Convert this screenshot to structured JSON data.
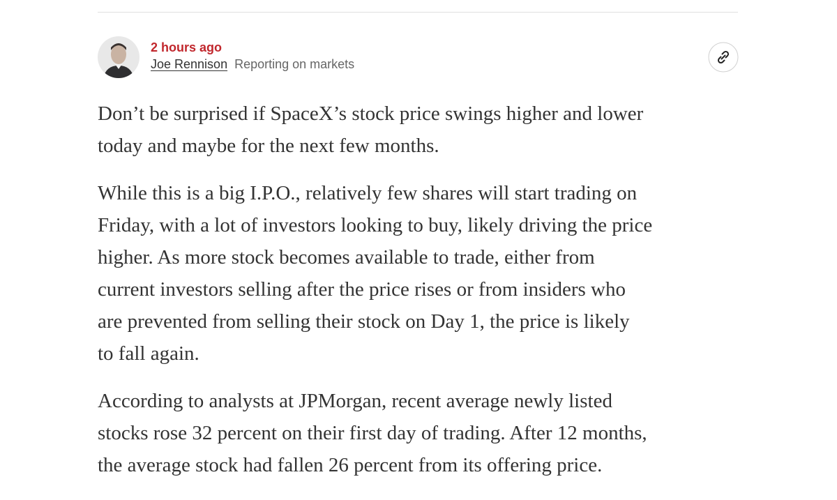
{
  "header": {
    "timestamp": "2 hours ago",
    "author": "Joe Rennison",
    "beat": "Reporting on markets"
  },
  "paragraphs": [
    [
      "Don’t be surprised if SpaceX’s stock price swings higher and lower",
      "today and maybe for the next few months."
    ],
    [
      "While this is a big I.P.O., relatively few shares will start trading on",
      "Friday, with a lot of investors looking to buy, likely driving the price",
      "higher. As more stock becomes available to trade, either from",
      "current investors selling after the price rises or from insiders who",
      "are prevented from selling their stock on Day 1, the price is likely",
      "to fall again."
    ],
    [
      "According to analysts at JPMorgan, recent average newly listed",
      "stocks rose 32 percent on their first day of trading. After 12 months,",
      "the average stock had fallen 26 percent from its offering price."
    ]
  ]
}
